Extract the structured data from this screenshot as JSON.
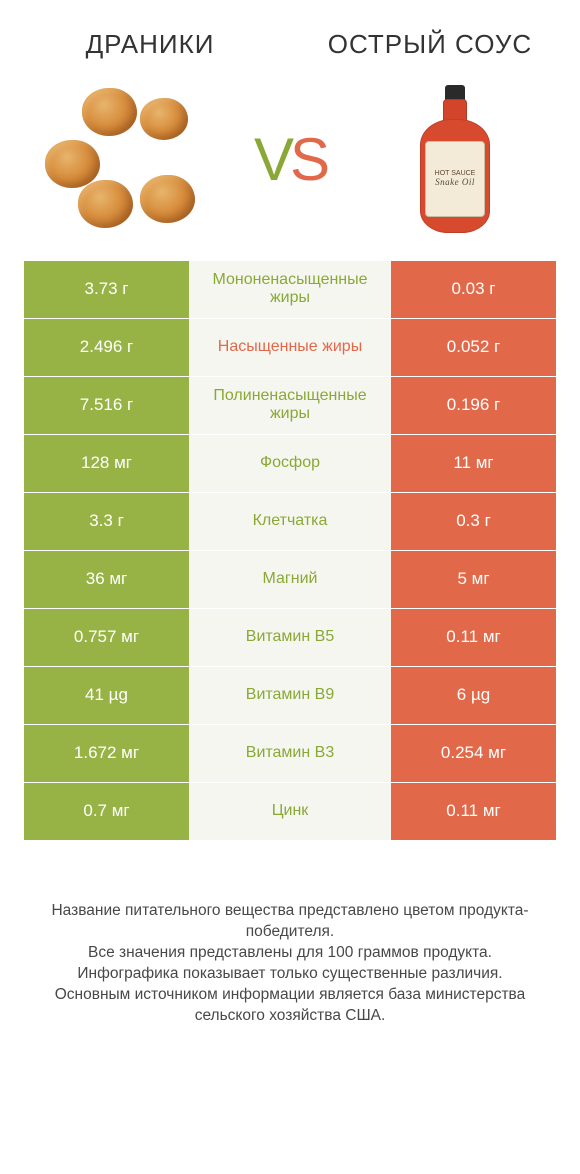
{
  "header": {
    "left_title": "ДРАНИКИ",
    "right_title": "ОСТРЫЙ СОУС",
    "vs_v": "V",
    "vs_s": "S",
    "bottle_label_top": "HOT SAUCE",
    "bottle_label_brand": "Snake Oil"
  },
  "colors": {
    "green": "#97b346",
    "orange": "#e2684a",
    "mid_bg": "#f6f6f1",
    "green_text": "#8aa836",
    "orange_text": "#e2684a"
  },
  "table": {
    "rows": [
      {
        "left": "3.73 г",
        "label": "Мононенасыщенные жиры",
        "right": "0.03 г",
        "winner": "left"
      },
      {
        "left": "2.496 г",
        "label": "Насыщенные жиры",
        "right": "0.052 г",
        "winner": "right"
      },
      {
        "left": "7.516 г",
        "label": "Полиненасыщенные жиры",
        "right": "0.196 г",
        "winner": "left"
      },
      {
        "left": "128 мг",
        "label": "Фосфор",
        "right": "11 мг",
        "winner": "left"
      },
      {
        "left": "3.3 г",
        "label": "Клетчатка",
        "right": "0.3 г",
        "winner": "left"
      },
      {
        "left": "36 мг",
        "label": "Магний",
        "right": "5 мг",
        "winner": "left"
      },
      {
        "left": "0.757 мг",
        "label": "Витамин B5",
        "right": "0.11 мг",
        "winner": "left"
      },
      {
        "left": "41 µg",
        "label": "Витамин B9",
        "right": "6 µg",
        "winner": "left"
      },
      {
        "left": "1.672 мг",
        "label": "Витамин B3",
        "right": "0.254 мг",
        "winner": "left"
      },
      {
        "left": "0.7 мг",
        "label": "Цинк",
        "right": "0.11 мг",
        "winner": "left"
      }
    ]
  },
  "footnotes": {
    "line1": "Название питательного вещества представлено цветом продукта-победителя.",
    "line2": "Все значения представлены для 100 граммов продукта.",
    "line3": "Инфографика показывает только существенные различия.",
    "line4": "Основным источником информации является база министерства сельского хозяйства США."
  }
}
